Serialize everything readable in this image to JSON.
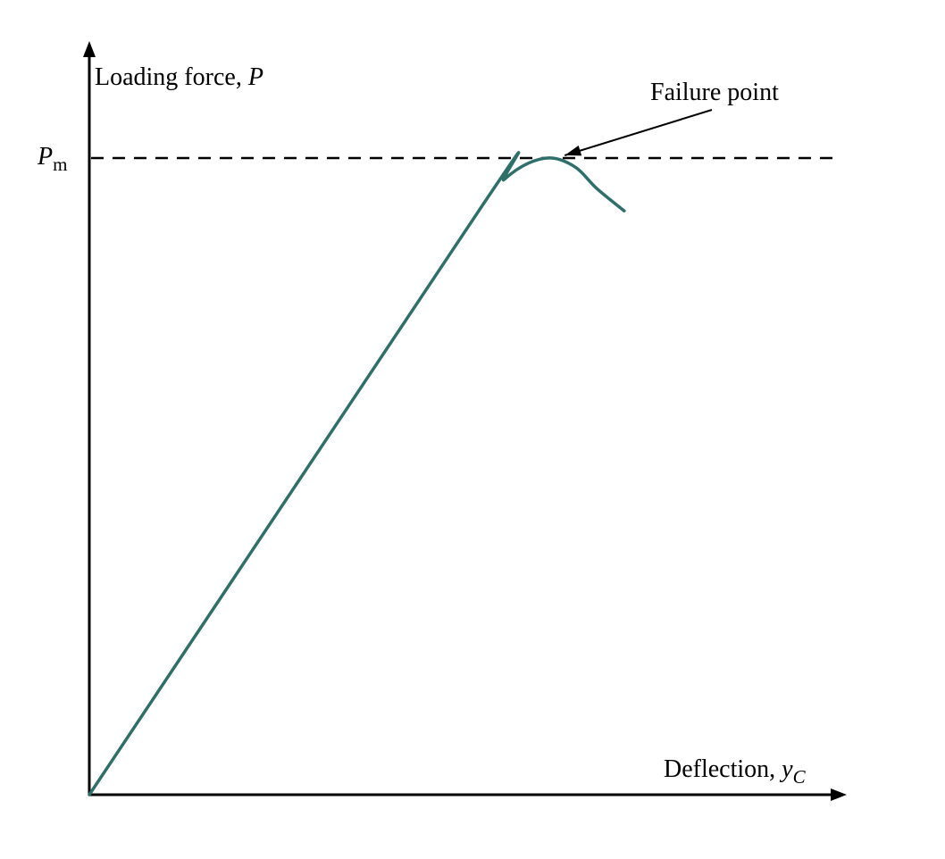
{
  "chart_data": {
    "type": "line",
    "title": "",
    "xlabel": {
      "main": "Deflection, ",
      "symbol": "y",
      "subscript": "C"
    },
    "ylabel": {
      "main": "Loading force, ",
      "symbol": "P"
    },
    "yticks": [
      {
        "value": 1.0,
        "symbol": "P",
        "subscript": "m",
        "reference_line": "dashed"
      }
    ],
    "xlim": [
      0,
      1.0
    ],
    "ylim": [
      0,
      1.0
    ],
    "grid": false,
    "series": [
      {
        "color": "#2F6F6B",
        "points": [
          [
            0.0,
            0.0
          ],
          [
            0.548,
            0.929
          ],
          [
            0.576,
            0.966
          ],
          [
            0.61,
            0.992
          ],
          [
            0.643,
            1.0
          ],
          [
            0.676,
            0.985
          ],
          [
            0.705,
            0.952
          ],
          [
            0.743,
            0.917
          ]
        ]
      }
    ],
    "annotations": [
      {
        "text": "Failure point",
        "target": [
          0.643,
          1.0
        ],
        "arrow": true
      }
    ]
  }
}
